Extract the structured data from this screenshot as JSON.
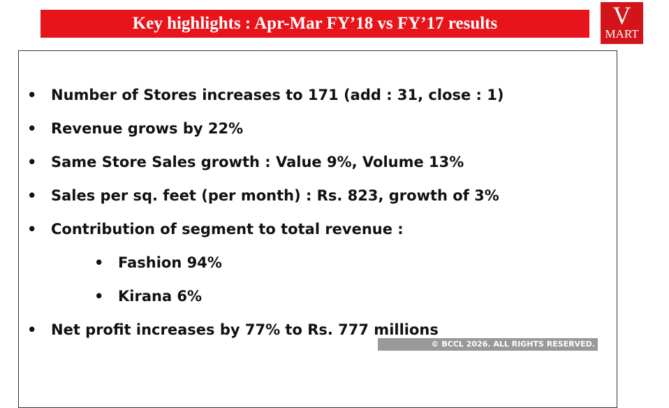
{
  "header": {
    "title": "Key highlights : Apr-Mar FY’18 vs FY’17 results",
    "logo_top": "V",
    "logo_bottom": "MART"
  },
  "bullets": [
    "Number of Stores increases to 171 (add : 31, close : 1)",
    "Revenue grows by 22%",
    "Same Store Sales growth : Value 9%, Volume 13%",
    "Sales per sq. feet (per month) : Rs. 823, growth of 3%",
    "Contribution of segment to total revenue :",
    "Fashion 94%",
    "Kirana 6%",
    "Net profit increases by 77% to Rs. 777 millions"
  ],
  "watermark": "© BCCL 2026. ALL RIGHTS RESERVED."
}
